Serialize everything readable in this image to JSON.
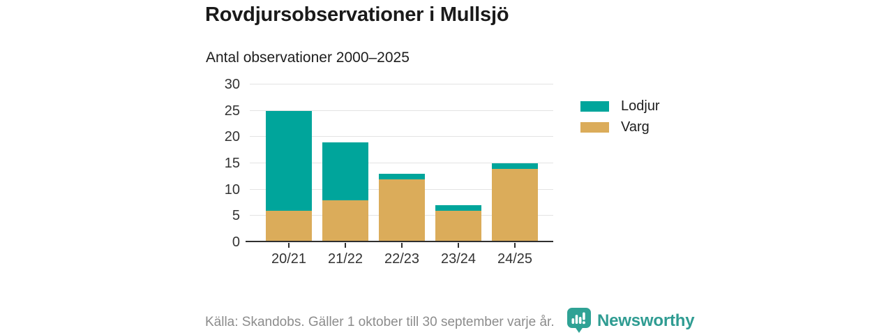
{
  "header": {
    "title": "Rovdjursobservationer i Mullsjö",
    "subtitle": "Antal observationer 2000–2025"
  },
  "chart_data": {
    "type": "bar",
    "stacked": true,
    "title": "Rovdjursobservationer i Mullsjö",
    "subtitle": "Antal observationer 2000–2025",
    "categories": [
      "20/21",
      "21/22",
      "22/23",
      "23/24",
      "24/25"
    ],
    "series": [
      {
        "name": "Varg",
        "color": "#DBAC5A",
        "values": [
          6,
          8,
          12,
          6,
          14
        ]
      },
      {
        "name": "Lodjur",
        "color": "#00A59B",
        "values": [
          19,
          11,
          1,
          1,
          1
        ]
      }
    ],
    "totals": [
      25,
      19,
      13,
      7,
      15
    ],
    "legend": [
      {
        "label": "Lodjur",
        "color": "#00A59B"
      },
      {
        "label": "Varg",
        "color": "#DBAC5A"
      }
    ],
    "legend_position": "right",
    "yticks": [
      0,
      5,
      10,
      15,
      20,
      25,
      30
    ],
    "ylim": [
      0,
      30
    ],
    "grid": true,
    "xlabel": "",
    "ylabel": ""
  },
  "footer": {
    "source": "Källa: Skandobs. Gäller 1 oktober till 30 september varje år.",
    "brand": "Newsworthy",
    "brand_color": "#2F9C92",
    "logo_icon": "speech-bubble-bar-chart",
    "logo_color": "#2FA295"
  }
}
